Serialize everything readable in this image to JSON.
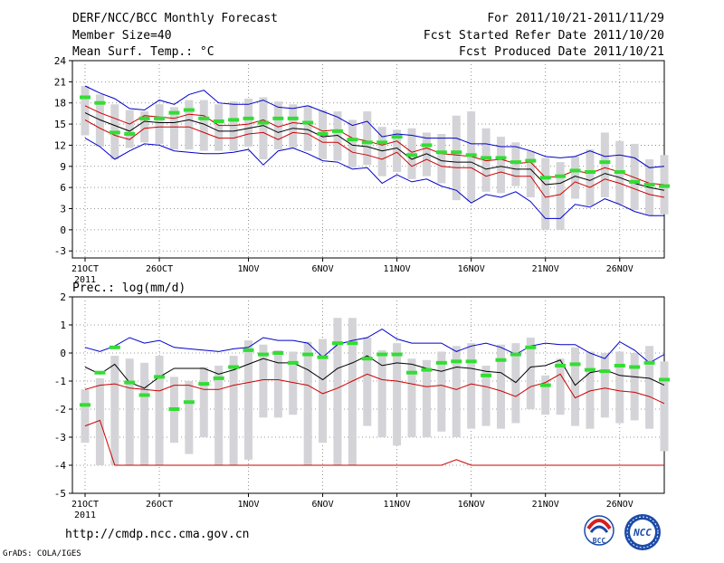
{
  "header": {
    "left": [
      "DERF/NCC/BCC Monthly Forecast",
      "Member Size=40",
      "Mean Surf. Temp.: °C"
    ],
    "right": [
      "For 2011/10/21-2011/11/29",
      "Fcst Started Refer Date 2011/10/20",
      "Fcst Produced Date 2011/10/21"
    ]
  },
  "footer": {
    "url": "http://cmdp.ncc.cma.gov.cn",
    "credit": "GrADS: COLA/IGES"
  },
  "logos": {
    "bcc_text": "BCC",
    "ncc_text": "NCC"
  },
  "colors": {
    "max": "#0000cc",
    "min": "#cc0000",
    "mean": "#000000",
    "median": "#33dd33",
    "box": "#d4d4d8"
  },
  "chart_data": [
    {
      "type": "line",
      "title": "Mean Surf. Temp.: °C",
      "x_tick_labels": [
        "21OCT",
        "26OCT",
        "1NOV",
        "6NOV",
        "11NOV",
        "16NOV",
        "21NOV",
        "26NOV"
      ],
      "x_tick_days": [
        0,
        5,
        11,
        16,
        21,
        26,
        31,
        36
      ],
      "x_sub_label": "2011",
      "ylim": [
        -4,
        24
      ],
      "yticks": [
        -3,
        0,
        3,
        6,
        9,
        12,
        15,
        18,
        21,
        24
      ],
      "days": 40,
      "series": [
        {
          "name": "max",
          "values": [
            20.4,
            19.4,
            18.6,
            17.2,
            17.0,
            18.4,
            17.8,
            19.2,
            19.8,
            18.0,
            17.8,
            17.8,
            18.4,
            17.4,
            17.2,
            17.6,
            16.8,
            16.0,
            14.8,
            15.4,
            13.2,
            13.6,
            13.4,
            13.0,
            13.0,
            13.0,
            12.2,
            12.2,
            11.8,
            11.8,
            11.2,
            10.4,
            10.2,
            10.4,
            11.2,
            10.4,
            10.6,
            10.2,
            8.8,
            9.0
          ]
        },
        {
          "name": "box_high",
          "values": [
            19.6,
            18.6,
            17.4,
            16.6,
            16.4,
            17.2,
            16.4,
            17.6,
            17.8,
            17.0,
            17.2,
            17.4,
            17.8,
            17.4,
            17.0,
            16.6,
            16.0,
            15.0,
            14.2,
            14.4,
            13.8,
            13.2,
            13.0,
            12.8,
            12.4,
            12.0,
            12.2,
            11.8,
            11.4,
            11.0,
            10.4,
            9.8,
            9.4,
            9.6,
            10.0,
            9.8,
            9.6,
            9.0,
            8.2,
            8.4
          ]
        },
        {
          "name": "mean_upper",
          "values": [
            17.6,
            16.6,
            15.8,
            15.0,
            16.2,
            16.0,
            15.8,
            16.4,
            16.2,
            14.8,
            14.8,
            15.0,
            15.6,
            14.6,
            15.2,
            15.0,
            14.0,
            14.2,
            13.0,
            12.6,
            12.0,
            12.6,
            11.0,
            11.6,
            10.8,
            10.6,
            10.4,
            9.8,
            10.0,
            9.4,
            9.6,
            7.4,
            7.6,
            8.4,
            8.0,
            8.8,
            8.2,
            7.4,
            6.6,
            6.4
          ]
        },
        {
          "name": "mean",
          "values": [
            16.6,
            15.6,
            14.8,
            14.0,
            15.4,
            15.2,
            15.2,
            15.6,
            15.0,
            14.0,
            14.0,
            14.4,
            14.8,
            13.8,
            14.4,
            14.2,
            13.2,
            13.4,
            12.0,
            11.8,
            11.2,
            11.6,
            10.0,
            10.8,
            9.8,
            9.6,
            9.6,
            8.6,
            9.0,
            8.6,
            8.6,
            6.4,
            6.6,
            7.6,
            7.0,
            8.0,
            7.4,
            6.6,
            6.0,
            5.6
          ]
        },
        {
          "name": "mean_lower",
          "values": [
            15.6,
            14.4,
            13.4,
            12.8,
            14.4,
            14.6,
            14.6,
            14.6,
            13.8,
            13.0,
            13.0,
            13.6,
            13.8,
            12.8,
            13.8,
            13.6,
            12.4,
            12.4,
            11.0,
            10.6,
            10.0,
            11.0,
            9.0,
            10.0,
            9.0,
            8.8,
            8.8,
            7.6,
            8.2,
            7.6,
            7.6,
            4.6,
            5.0,
            6.8,
            6.0,
            7.2,
            6.6,
            5.8,
            5.0,
            4.6
          ]
        },
        {
          "name": "box_low",
          "values": [
            14.6,
            13.0,
            12.2,
            11.8,
            13.6,
            13.8,
            13.4,
            13.4,
            12.2,
            12.2,
            11.8,
            12.4,
            12.6,
            12.2,
            12.6,
            12.6,
            11.2,
            11.2,
            10.0,
            9.6,
            8.8,
            10.0,
            8.2,
            8.8,
            8.0,
            7.2,
            7.0,
            6.6,
            6.8,
            6.6,
            6.0,
            3.6,
            3.4,
            4.6,
            4.4,
            5.6,
            5.0,
            3.6,
            3.2,
            3.2
          ]
        },
        {
          "name": "min",
          "values": [
            13.0,
            11.8,
            10.0,
            11.2,
            12.2,
            12.0,
            11.2,
            11.0,
            10.8,
            10.8,
            11.0,
            11.4,
            9.2,
            11.2,
            11.6,
            10.8,
            9.8,
            9.6,
            8.6,
            8.8,
            6.6,
            7.8,
            6.8,
            7.2,
            6.2,
            5.6,
            3.8,
            5.0,
            4.6,
            5.4,
            4.0,
            1.6,
            1.6,
            3.6,
            3.2,
            4.4,
            3.6,
            2.6,
            2.0,
            2.0
          ]
        },
        {
          "name": "median",
          "values": [
            18.8,
            18.0,
            13.8,
            13.6,
            15.8,
            15.8,
            16.6,
            17.0,
            15.8,
            15.4,
            15.6,
            15.8,
            15.2,
            15.8,
            15.8,
            15.2,
            13.6,
            14.0,
            12.8,
            12.4,
            12.4,
            13.2,
            10.6,
            12.0,
            11.0,
            11.0,
            10.6,
            10.2,
            10.2,
            9.6,
            9.8,
            7.4,
            7.6,
            8.4,
            8.2,
            9.6,
            8.2,
            6.8,
            6.4,
            6.2
          ]
        },
        {
          "name": "range_top",
          "values": [
            20.4,
            19.2,
            17.8,
            17.0,
            16.8,
            17.8,
            17.4,
            18.4,
            18.4,
            17.8,
            18.2,
            18.6,
            18.8,
            18.2,
            17.8,
            17.6,
            17.0,
            16.8,
            15.6,
            16.8,
            14.6,
            14.2,
            14.4,
            13.8,
            13.6,
            16.2,
            16.8,
            14.4,
            13.2,
            12.4,
            11.2,
            10.2,
            9.6,
            10.4,
            11.4,
            13.8,
            12.6,
            12.2,
            10.0,
            10.6
          ]
        },
        {
          "name": "range_bottom",
          "values": [
            13.4,
            11.8,
            10.0,
            11.6,
            12.4,
            12.2,
            11.4,
            11.4,
            11.2,
            11.2,
            11.2,
            11.8,
            10.0,
            11.4,
            11.6,
            11.2,
            10.0,
            9.8,
            8.8,
            9.2,
            7.6,
            8.2,
            7.2,
            7.6,
            6.6,
            4.2,
            4.0,
            5.4,
            5.2,
            6.2,
            4.6,
            0.0,
            0.0,
            4.4,
            3.4,
            4.6,
            3.6,
            2.8,
            2.0,
            2.2
          ]
        }
      ]
    },
    {
      "type": "line",
      "title": "Prec.: log(mm/d)",
      "x_tick_labels": [
        "21OCT",
        "26OCT",
        "1NOV",
        "6NOV",
        "11NOV",
        "16NOV",
        "21NOV",
        "26NOV"
      ],
      "x_tick_days": [
        0,
        5,
        11,
        16,
        21,
        26,
        31,
        36
      ],
      "x_sub_label": "2011",
      "ylim": [
        -5,
        2
      ],
      "yticks": [
        -5,
        -4,
        -3,
        -2,
        -1,
        0,
        1,
        2
      ],
      "days": 40,
      "series": [
        {
          "name": "max",
          "values": [
            0.2,
            0.05,
            0.25,
            0.55,
            0.35,
            0.45,
            0.2,
            0.15,
            0.1,
            0.05,
            0.15,
            0.2,
            0.55,
            0.45,
            0.45,
            0.35,
            -0.15,
            0.3,
            0.45,
            0.55,
            0.85,
            0.5,
            0.35,
            0.35,
            0.35,
            0.05,
            0.25,
            0.35,
            0.2,
            -0.05,
            0.25,
            0.35,
            0.3,
            0.3,
            0.0,
            -0.2,
            0.4,
            0.1,
            -0.35,
            -0.05
          ]
        },
        {
          "name": "mean",
          "values": [
            -0.5,
            -0.75,
            -0.4,
            -1.05,
            -1.25,
            -0.85,
            -0.55,
            -0.55,
            -0.55,
            -0.75,
            -0.6,
            -0.4,
            -0.2,
            -0.35,
            -0.35,
            -0.6,
            -0.95,
            -0.55,
            -0.35,
            -0.1,
            -0.45,
            -0.35,
            -0.4,
            -0.55,
            -0.65,
            -0.5,
            -0.55,
            -0.65,
            -0.7,
            -1.05,
            -0.5,
            -0.45,
            -0.25,
            -1.15,
            -0.7,
            -0.6,
            -0.8,
            -0.85,
            -0.9,
            -1.15
          ]
        },
        {
          "name": "min",
          "values": [
            -1.3,
            -1.15,
            -1.1,
            -1.25,
            -1.3,
            -1.35,
            -1.15,
            -1.15,
            -1.3,
            -1.3,
            -1.15,
            -1.05,
            -0.95,
            -0.95,
            -1.05,
            -1.15,
            -1.45,
            -1.25,
            -1.0,
            -0.75,
            -0.95,
            -1.0,
            -1.1,
            -1.2,
            -1.15,
            -1.3,
            -1.1,
            -1.2,
            -1.35,
            -1.55,
            -1.2,
            -1.05,
            -0.75,
            -1.6,
            -1.35,
            -1.25,
            -1.35,
            -1.4,
            -1.55,
            -1.8
          ]
        },
        {
          "name": "min_extreme",
          "values": [
            -2.6,
            -2.4,
            -4.0,
            -4.0,
            -4.0,
            -4.0,
            -4.0,
            -4.0,
            -4.0,
            -4.0,
            -4.0,
            -4.0,
            -4.0,
            -4.0,
            -4.0,
            -4.0,
            -4.0,
            -4.0,
            -4.0,
            -4.0,
            -4.0,
            -4.0,
            -4.0,
            -4.0,
            -4.0,
            -3.8,
            -4.0,
            -4.0,
            -4.0,
            -4.0,
            -4.0,
            -4.0,
            -4.0,
            -4.0,
            -4.0,
            -4.0,
            -4.0,
            -4.0,
            -4.0,
            -4.0
          ]
        },
        {
          "name": "median",
          "values": [
            -1.85,
            -0.7,
            0.2,
            -1.05,
            -1.5,
            -0.85,
            -2.0,
            -1.75,
            -1.1,
            -0.9,
            -0.5,
            0.1,
            -0.05,
            0.0,
            -0.35,
            -0.05,
            -0.15,
            0.35,
            0.35,
            -0.2,
            -0.05,
            -0.05,
            -0.7,
            -0.6,
            -0.35,
            -0.3,
            -0.3,
            -0.8,
            -0.25,
            -0.05,
            0.2,
            -1.15,
            -0.45,
            -0.4,
            -0.6,
            -0.65,
            -0.45,
            -0.5,
            -0.35,
            -0.95
          ]
        },
        {
          "name": "range_top",
          "values": [
            -1.3,
            -0.9,
            -0.1,
            -0.2,
            -0.35,
            -0.1,
            -0.85,
            -1.0,
            -0.5,
            -0.45,
            -0.1,
            0.45,
            0.3,
            0.1,
            0.05,
            0.4,
            0.5,
            1.25,
            1.25,
            0.55,
            0.1,
            0.35,
            -0.2,
            -0.25,
            0.05,
            0.25,
            0.35,
            -0.45,
            0.3,
            0.35,
            0.55,
            -0.8,
            -0.2,
            0.2,
            0.05,
            0.0,
            0.05,
            0.0,
            0.25,
            -0.3
          ]
        },
        {
          "name": "range_bottom",
          "values": [
            -3.2,
            -4.0,
            -4.0,
            -4.0,
            -4.0,
            -4.0,
            -3.2,
            -3.6,
            -3.0,
            -4.0,
            -4.0,
            -3.8,
            -2.3,
            -2.3,
            -2.2,
            -4.0,
            -3.2,
            -4.0,
            -4.0,
            -2.6,
            -3.0,
            -3.3,
            -3.0,
            -3.0,
            -2.8,
            -3.0,
            -2.7,
            -2.6,
            -2.7,
            -2.5,
            -2.0,
            -2.2,
            -2.2,
            -2.6,
            -2.7,
            -2.3,
            -2.5,
            -2.4,
            -2.7,
            -3.5
          ]
        }
      ]
    }
  ]
}
